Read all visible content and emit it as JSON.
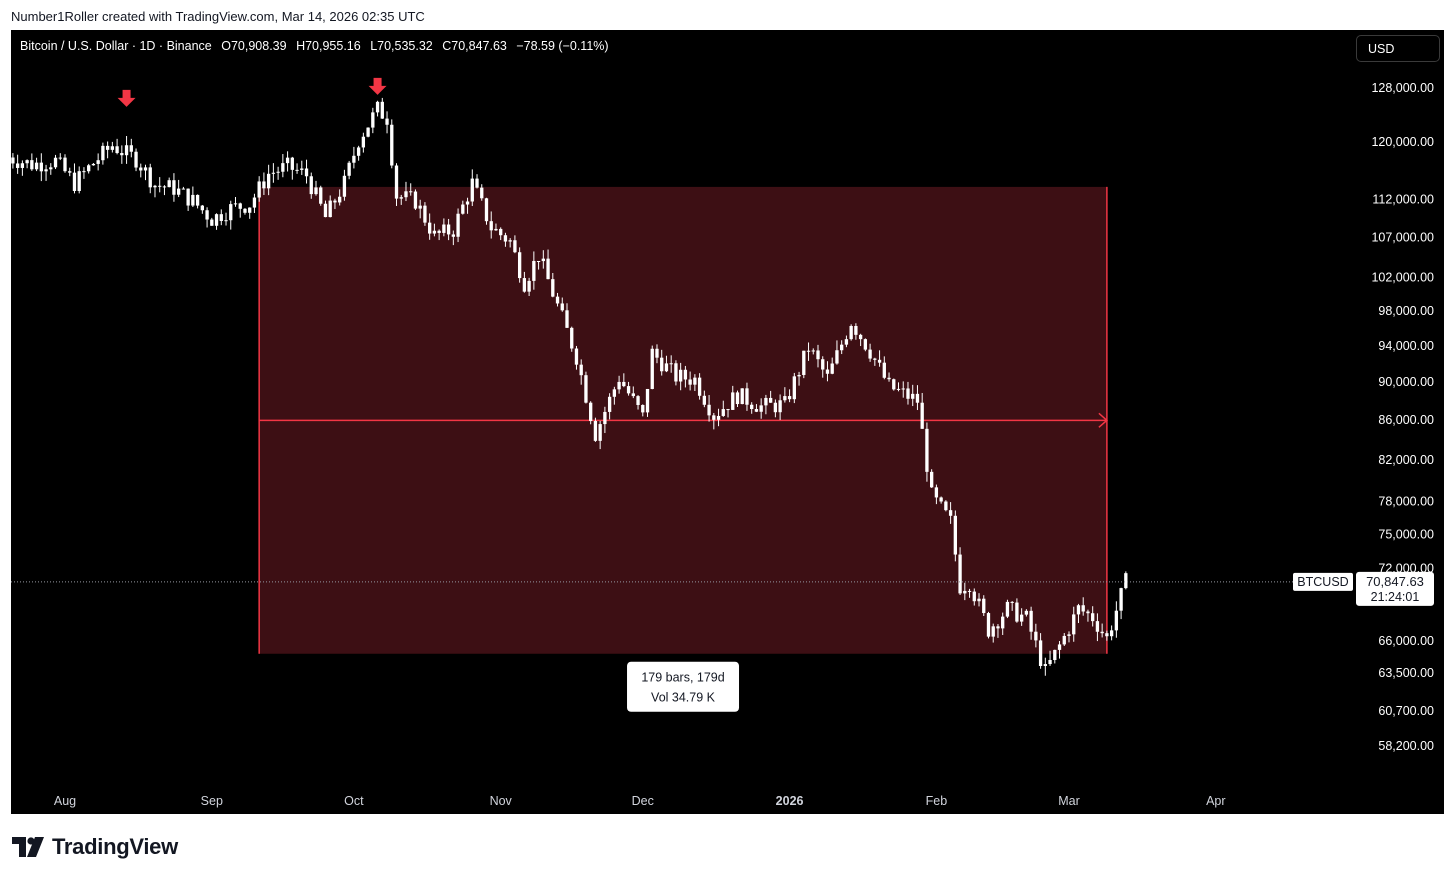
{
  "header": {
    "attribution": "Number1Roller created with TradingView.com, Mar 14, 2026 02:35 UTC"
  },
  "symbol": {
    "name": "Bitcoin / U.S. Dollar · 1D · Binance",
    "open": "O70,908.39",
    "high": "H70,955.16",
    "low": "L70,535.32",
    "close": "C70,847.63",
    "change": "−78.59 (−0.11%)"
  },
  "currency_button": "USD",
  "price_tag": {
    "ticker": "BTCUSD",
    "price": "70,847.63",
    "countdown": "21:24:01"
  },
  "measure_box": {
    "line1": "179 bars, 179d",
    "line2": "Vol 34.79 K"
  },
  "footer": {
    "brand": "TradingView"
  },
  "colors": {
    "background": "#000000",
    "candle": "#ffffff",
    "zone_fill": "#3d0f14",
    "zone_line": "#f23645",
    "marker": "#f23645"
  },
  "chart_data": {
    "type": "candlestick",
    "scale": "log",
    "price_axis_labels": [
      "128,000.00",
      "120,000.00",
      "112,000.00",
      "107,000.00",
      "102,000.00",
      "98,000.00",
      "94,000.00",
      "90,000.00",
      "86,000.00",
      "82,000.00",
      "78,000.00",
      "75,000.00",
      "72,000.00",
      "66,000.00",
      "63,500.00",
      "60,700.00",
      "58,200.00"
    ],
    "price_axis_values": [
      128000,
      120000,
      112000,
      107000,
      102000,
      98000,
      94000,
      90000,
      86000,
      82000,
      78000,
      75000,
      72000,
      66000,
      63500,
      60700,
      58200
    ],
    "time_axis_labels": [
      "Aug",
      "Sep",
      "Oct",
      "Nov",
      "Dec",
      "2026",
      "Feb",
      "Mar",
      "Apr"
    ],
    "time_axis_dates": [
      "2025-08-01",
      "2025-09-01",
      "2025-10-01",
      "2025-11-01",
      "2025-12-01",
      "2026-01-01",
      "2026-02-01",
      "2026-03-01",
      "2026-04-01"
    ],
    "series_close": [
      [
        "2025-07-20",
        117800
      ],
      [
        "2025-07-25",
        116800
      ],
      [
        "2025-07-30",
        117300
      ],
      [
        "2025-08-03",
        114200
      ],
      [
        "2025-08-07",
        117000
      ],
      [
        "2025-08-11",
        119500
      ],
      [
        "2025-08-14",
        118300
      ],
      [
        "2025-08-16",
        117600
      ],
      [
        "2025-08-20",
        114000
      ],
      [
        "2025-08-24",
        113500
      ],
      [
        "2025-08-28",
        111800
      ],
      [
        "2025-09-01",
        109400
      ],
      [
        "2025-09-05",
        110800
      ],
      [
        "2025-09-09",
        111400
      ],
      [
        "2025-09-13",
        115500
      ],
      [
        "2025-09-17",
        116500
      ],
      [
        "2025-09-21",
        115300
      ],
      [
        "2025-09-25",
        109600
      ],
      [
        "2025-09-29",
        114200
      ],
      [
        "2025-10-02",
        120300
      ],
      [
        "2025-10-06",
        124800
      ],
      [
        "2025-10-08",
        123500
      ],
      [
        "2025-10-10",
        112500
      ],
      [
        "2025-10-14",
        111800
      ],
      [
        "2025-10-18",
        107200
      ],
      [
        "2025-10-22",
        108000
      ],
      [
        "2025-10-26",
        114200
      ],
      [
        "2025-10-30",
        108300
      ],
      [
        "2025-11-03",
        106500
      ],
      [
        "2025-11-06",
        101400
      ],
      [
        "2025-11-09",
        104800
      ],
      [
        "2025-11-13",
        98600
      ],
      [
        "2025-11-17",
        92800
      ],
      [
        "2025-11-21",
        84600
      ],
      [
        "2025-11-26",
        90500
      ],
      [
        "2025-12-01",
        86300
      ],
      [
        "2025-12-03",
        93200
      ],
      [
        "2025-12-08",
        90600
      ],
      [
        "2025-12-12",
        90300
      ],
      [
        "2025-12-16",
        86500
      ],
      [
        "2025-12-21",
        88600
      ],
      [
        "2025-12-26",
        87400
      ],
      [
        "2025-12-31",
        87600
      ],
      [
        "2026-01-05",
        93800
      ],
      [
        "2026-01-09",
        90400
      ],
      [
        "2026-01-14",
        96800
      ],
      [
        "2026-01-18",
        93400
      ],
      [
        "2026-01-22",
        89500
      ],
      [
        "2026-01-28",
        88000
      ],
      [
        "2026-01-31",
        78500
      ],
      [
        "2026-02-04",
        76100
      ],
      [
        "2026-02-06",
        70500
      ],
      [
        "2026-02-08",
        70800
      ],
      [
        "2026-02-12",
        66900
      ],
      [
        "2026-02-16",
        68600
      ],
      [
        "2026-02-20",
        67800
      ],
      [
        "2026-02-24",
        63600
      ],
      [
        "2026-02-28",
        66300
      ],
      [
        "2026-03-03",
        68600
      ],
      [
        "2026-03-06",
        67900
      ],
      [
        "2026-03-09",
        66200
      ],
      [
        "2026-03-13",
        70847.63
      ]
    ],
    "markers": [
      {
        "type": "arrow-down",
        "date": "2025-08-14",
        "price": 124400
      },
      {
        "type": "arrow-down",
        "date": "2025-10-06",
        "price": 126200
      }
    ],
    "date_range_zone": {
      "start": "2025-09-11",
      "end": "2026-03-09",
      "top": 113700,
      "bottom": 65000,
      "bars": 179,
      "days": 179,
      "volume": "34.79K"
    },
    "current_price": 70847.63,
    "grid": false
  }
}
